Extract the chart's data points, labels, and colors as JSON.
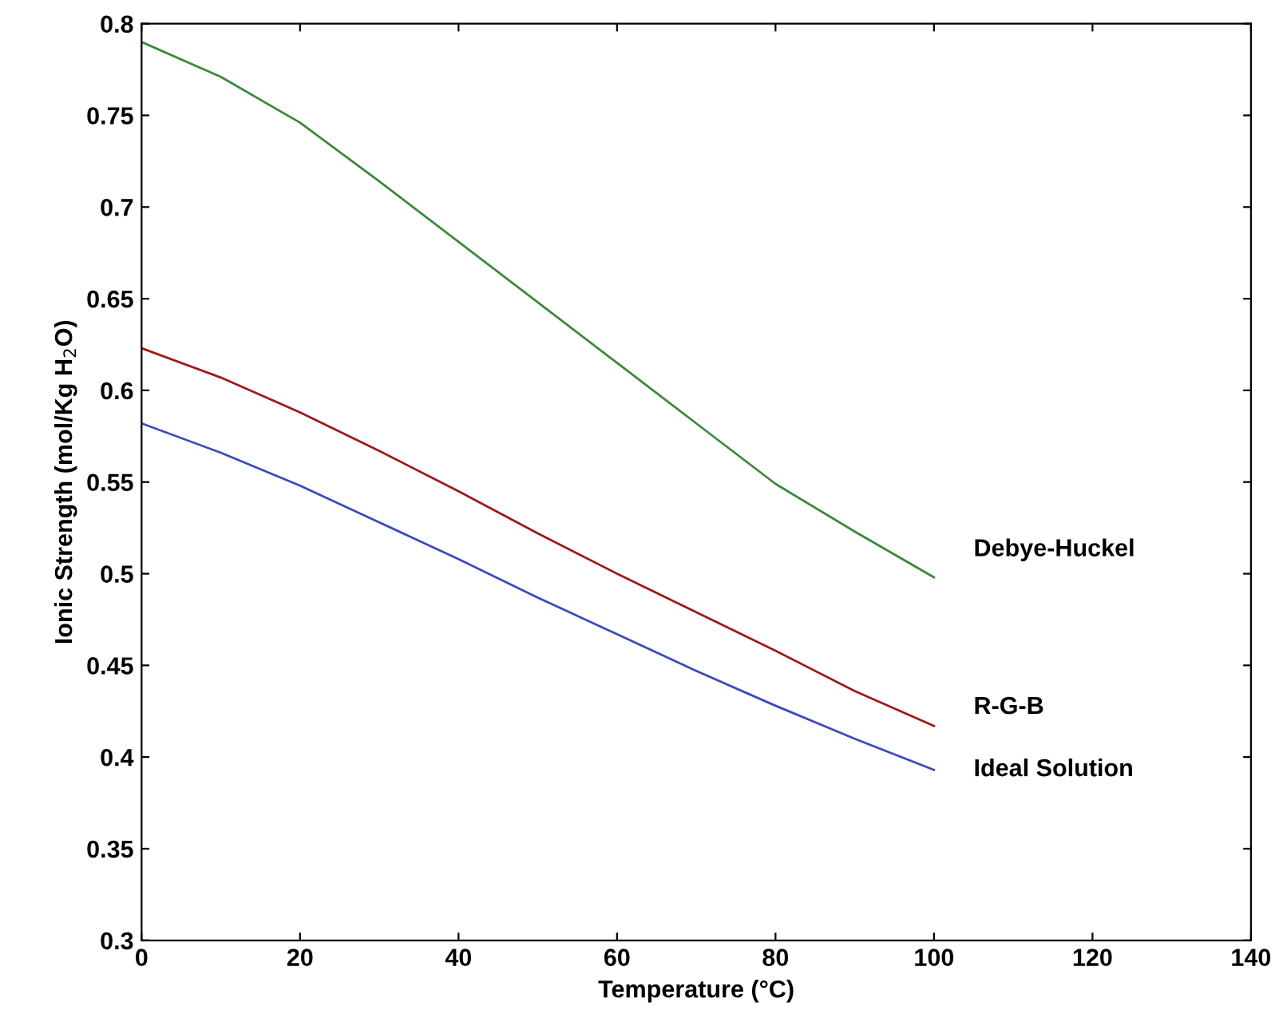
{
  "chart_data": {
    "type": "line",
    "xlabel": "Temperature (°C)",
    "ylabel": "Ionic Strength (mol/Kg H$_{2}$O)",
    "x": [
      0,
      10,
      20,
      30,
      40,
      50,
      60,
      70,
      80,
      90,
      100
    ],
    "series": [
      {
        "name": "Debye-Huckel",
        "color": "#3a8a3a",
        "values": [
          0.79,
          0.771,
          0.746,
          0.714,
          0.681,
          0.648,
          0.615,
          0.582,
          0.549,
          0.523,
          0.498
        ]
      },
      {
        "name": "R-G-B",
        "color": "#a01818",
        "values": [
          0.623,
          0.607,
          0.588,
          0.567,
          0.545,
          0.522,
          0.5,
          0.479,
          0.458,
          0.436,
          0.417
        ]
      },
      {
        "name": "Ideal Solution",
        "color": "#3a4ac0",
        "values": [
          0.582,
          0.566,
          0.548,
          0.528,
          0.508,
          0.487,
          0.467,
          0.447,
          0.428,
          0.41,
          0.393
        ]
      }
    ],
    "xlim": [
      0,
      140
    ],
    "xticks": [
      0,
      20,
      40,
      60,
      80,
      100,
      120,
      140
    ],
    "ylim": [
      0.3,
      0.8
    ],
    "yticks": [
      0.3,
      0.35,
      0.4,
      0.45,
      0.5,
      0.55,
      0.6,
      0.65,
      0.7,
      0.75,
      0.8
    ],
    "grid": false,
    "legend": false,
    "marker": "none",
    "line_style": "solid"
  }
}
